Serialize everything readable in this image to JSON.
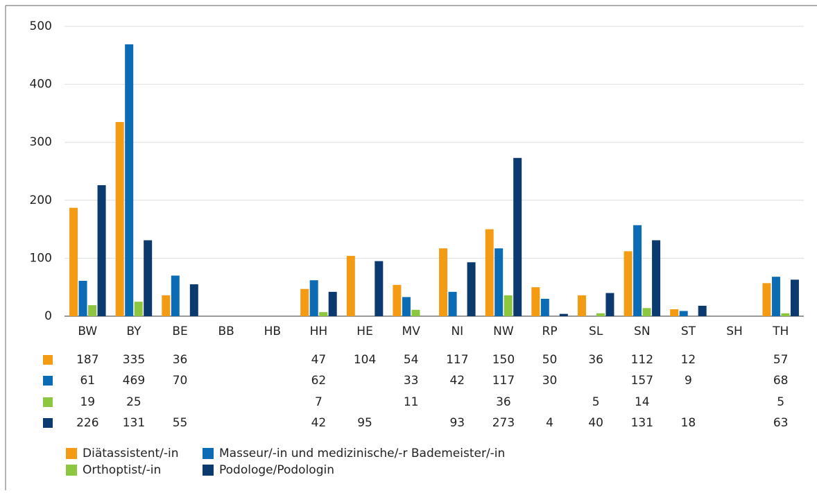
{
  "chart_data": {
    "type": "bar",
    "categories": [
      "BW",
      "BY",
      "BE",
      "BB",
      "HB",
      "HH",
      "HE",
      "MV",
      "NI",
      "NW",
      "RP",
      "SL",
      "SN",
      "ST",
      "SH",
      "TH"
    ],
    "series": [
      {
        "name": "Diätassistent/-in",
        "color": "#f39b12",
        "values": [
          187,
          335,
          36,
          null,
          null,
          47,
          104,
          54,
          117,
          150,
          50,
          36,
          112,
          12,
          null,
          57
        ]
      },
      {
        "name": "Masseur/-in und medizinische/-r Bademeister/-in",
        "color": "#0b6cb5",
        "values": [
          61,
          469,
          70,
          null,
          null,
          62,
          null,
          33,
          42,
          117,
          30,
          null,
          157,
          9,
          null,
          68
        ]
      },
      {
        "name": "Orthoptist/-in",
        "color": "#8dc63f",
        "values": [
          19,
          25,
          null,
          null,
          null,
          7,
          null,
          11,
          null,
          36,
          null,
          5,
          14,
          null,
          null,
          5
        ]
      },
      {
        "name": "Podologe/Podologin",
        "color": "#0d3a6e",
        "values": [
          226,
          131,
          55,
          null,
          null,
          42,
          95,
          null,
          93,
          273,
          4,
          40,
          131,
          18,
          null,
          63
        ]
      }
    ],
    "ylim": [
      0,
      500
    ],
    "yticks": [
      0,
      100,
      200,
      300,
      400,
      500
    ],
    "grid": true
  }
}
